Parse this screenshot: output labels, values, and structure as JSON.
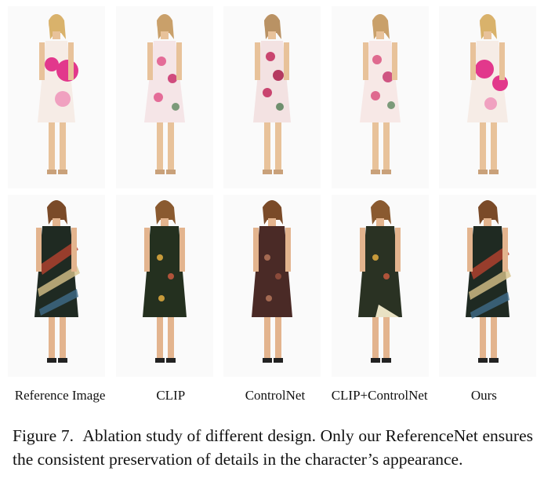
{
  "figure": {
    "rows": [
      {
        "row": "floral-sundress",
        "dress_colors": [
          "#f7e9e4",
          "#e0368a",
          "#f8b9cf"
        ]
      },
      {
        "row": "wrap-dress",
        "dress_colors": [
          "#1f2a22",
          "#8b3a2f",
          "#d7c28a"
        ]
      }
    ],
    "column_labels": [
      "Reference Image",
      "CLIP",
      "ControlNet",
      "CLIP+ControlNet",
      "Ours"
    ]
  },
  "caption": {
    "label": "Figure 7.",
    "text": "Ablation study of different design. Only our ReferenceNet ensures the consistent preservation of details in the character’s appearance."
  }
}
